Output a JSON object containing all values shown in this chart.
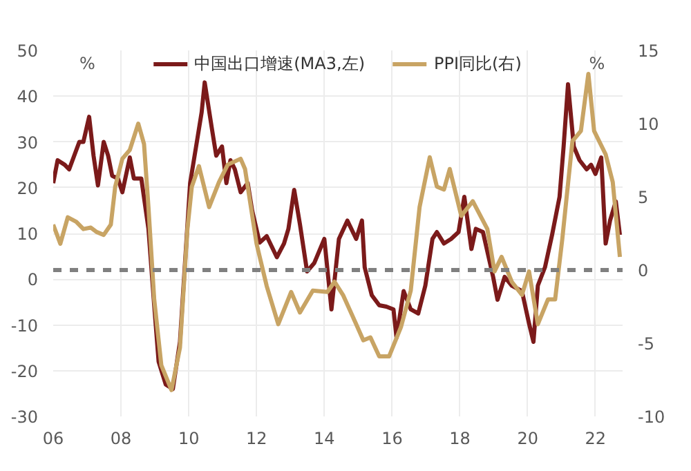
{
  "chart_data": {
    "type": "line",
    "annotations": [
      "%",
      "%"
    ],
    "x": [
      2006.0,
      2006.13,
      2006.34,
      2006.47,
      2006.77,
      2006.89,
      2007.06,
      2007.19,
      2007.32,
      2007.49,
      2007.62,
      2007.74,
      2007.91,
      2008.04,
      2008.26,
      2008.38,
      2008.6,
      2008.81,
      2008.98,
      2009.11,
      2009.32,
      2009.53,
      2009.74,
      2010.04,
      2010.26,
      2010.38,
      2010.47,
      2010.68,
      2010.81,
      2010.98,
      2011.11,
      2011.23,
      2011.36,
      2011.53,
      2011.74,
      2011.87,
      2012.09,
      2012.3,
      2012.6,
      2012.81,
      2012.94,
      2013.11,
      2013.28,
      2013.49,
      2013.7,
      2014.0,
      2014.21,
      2014.43,
      2014.68,
      2014.94,
      2015.11,
      2015.19,
      2015.4,
      2015.62,
      2015.83,
      2016.04,
      2016.13,
      2016.34,
      2016.55,
      2016.77,
      2016.98,
      2017.19,
      2017.32,
      2017.53,
      2017.74,
      2017.96,
      2018.13,
      2018.34,
      2018.47,
      2018.68,
      2018.98,
      2019.11,
      2019.32,
      2019.53,
      2019.83,
      2020.04,
      2020.17,
      2020.3,
      2020.51,
      2020.72,
      2020.94,
      2021.06,
      2021.19,
      2021.36,
      2021.53,
      2021.74,
      2021.87,
      2022.0,
      2022.17,
      2022.3,
      2022.43,
      2022.6,
      2022.72
    ],
    "series": [
      {
        "name": "中国出口增速(MA3,左)",
        "color": "#7b1a1a",
        "values": [
          21,
          26,
          25,
          24,
          30,
          30,
          35.5,
          27,
          20.5,
          30,
          27,
          22.6,
          22,
          19,
          26.6,
          22,
          22,
          11,
          -5.7,
          -18,
          -23,
          -24,
          -13.7,
          21,
          31,
          36.5,
          43,
          33,
          27,
          29,
          21,
          26,
          24,
          19,
          21,
          15,
          8,
          9.4,
          4.8,
          7.8,
          11,
          19.5,
          12,
          1.7,
          3.5,
          8.8,
          -6.6,
          8.8,
          12.8,
          8.8,
          12.8,
          2.6,
          -3.5,
          -5.7,
          -6,
          -6.6,
          -12.8,
          -2.6,
          -6.6,
          -7.5,
          -1.4,
          8.8,
          10.3,
          7.8,
          8.8,
          10.3,
          18,
          6.6,
          11,
          10.3,
          0.5,
          -4.5,
          0.5,
          -1.4,
          -2.6,
          -9.7,
          -13.7,
          -1.4,
          2.6,
          9.7,
          18,
          29,
          42.6,
          29,
          26,
          24,
          25,
          23,
          26.6,
          7.8,
          12.8,
          17,
          9.7
        ]
      },
      {
        "name": "PPI同比(右)",
        "color": "#c8a464",
        "axis": "y2",
        "x": [
          2006.0,
          2006.21,
          2006.43,
          2006.68,
          2006.89,
          2007.11,
          2007.28,
          2007.49,
          2007.7,
          2007.83,
          2008.04,
          2008.26,
          2008.51,
          2008.68,
          2008.81,
          2008.98,
          2009.19,
          2009.49,
          2009.74,
          2009.96,
          2010.09,
          2010.3,
          2010.6,
          2010.89,
          2011.15,
          2011.53,
          2011.66,
          2012.0,
          2012.3,
          2012.64,
          2013.02,
          2013.28,
          2013.66,
          2014.09,
          2014.3,
          2014.55,
          2014.94,
          2015.15,
          2015.36,
          2015.62,
          2015.91,
          2016.26,
          2016.55,
          2016.81,
          2017.11,
          2017.32,
          2017.53,
          2017.7,
          2018.04,
          2018.38,
          2018.81,
          2019.02,
          2019.23,
          2019.53,
          2019.83,
          2020.04,
          2020.3,
          2020.6,
          2020.81,
          2021.02,
          2021.32,
          2021.57,
          2021.79,
          2021.96,
          2022.3,
          2022.51,
          2022.72
        ],
        "values": [
          3.1,
          1.8,
          3.6,
          3.3,
          2.8,
          2.9,
          2.6,
          2.4,
          3.1,
          5.7,
          7.6,
          8.2,
          10,
          8.6,
          4.3,
          -2,
          -6.5,
          -8.2,
          -5.3,
          2.8,
          5.7,
          7.1,
          4.3,
          6,
          7.2,
          7.6,
          6.9,
          1.8,
          -1.1,
          -3.7,
          -1.5,
          -2.9,
          -1.4,
          -1.5,
          -0.8,
          -1.7,
          -3.7,
          -4.8,
          -4.6,
          -5.9,
          -5.9,
          -3.9,
          -1.4,
          4.3,
          7.7,
          5.7,
          5.5,
          6.9,
          3.7,
          4.7,
          2.8,
          -0.1,
          0.9,
          -0.8,
          -1.7,
          -0.1,
          -3.7,
          -2,
          -2,
          2.1,
          8.8,
          9.5,
          13.4,
          9.5,
          7.9,
          6,
          0.9
        ]
      }
    ],
    "xlim": [
      2006,
      2022.8
    ],
    "xticks": [
      {
        "value": 2006,
        "label": "06"
      },
      {
        "value": 2008,
        "label": "08"
      },
      {
        "value": 2010,
        "label": "10"
      },
      {
        "value": 2012,
        "label": "12"
      },
      {
        "value": 2014,
        "label": "14"
      },
      {
        "value": 2016,
        "label": "16"
      },
      {
        "value": 2018,
        "label": "18"
      },
      {
        "value": 2020,
        "label": "20"
      },
      {
        "value": 2022,
        "label": "22"
      }
    ],
    "ylim": [
      -30,
      50
    ],
    "yticks": [
      -30,
      -20,
      -10,
      0,
      10,
      20,
      30,
      40,
      50
    ],
    "y2lim": [
      -10,
      15
    ],
    "y2ticks": [
      -10,
      -5,
      0,
      5,
      10,
      15
    ],
    "ref_lines": [
      {
        "axis": "y2",
        "value": 0,
        "color": "#808080",
        "line_style": "dashed"
      }
    ],
    "grid": true,
    "legend": "top",
    "line_style": "solid"
  }
}
